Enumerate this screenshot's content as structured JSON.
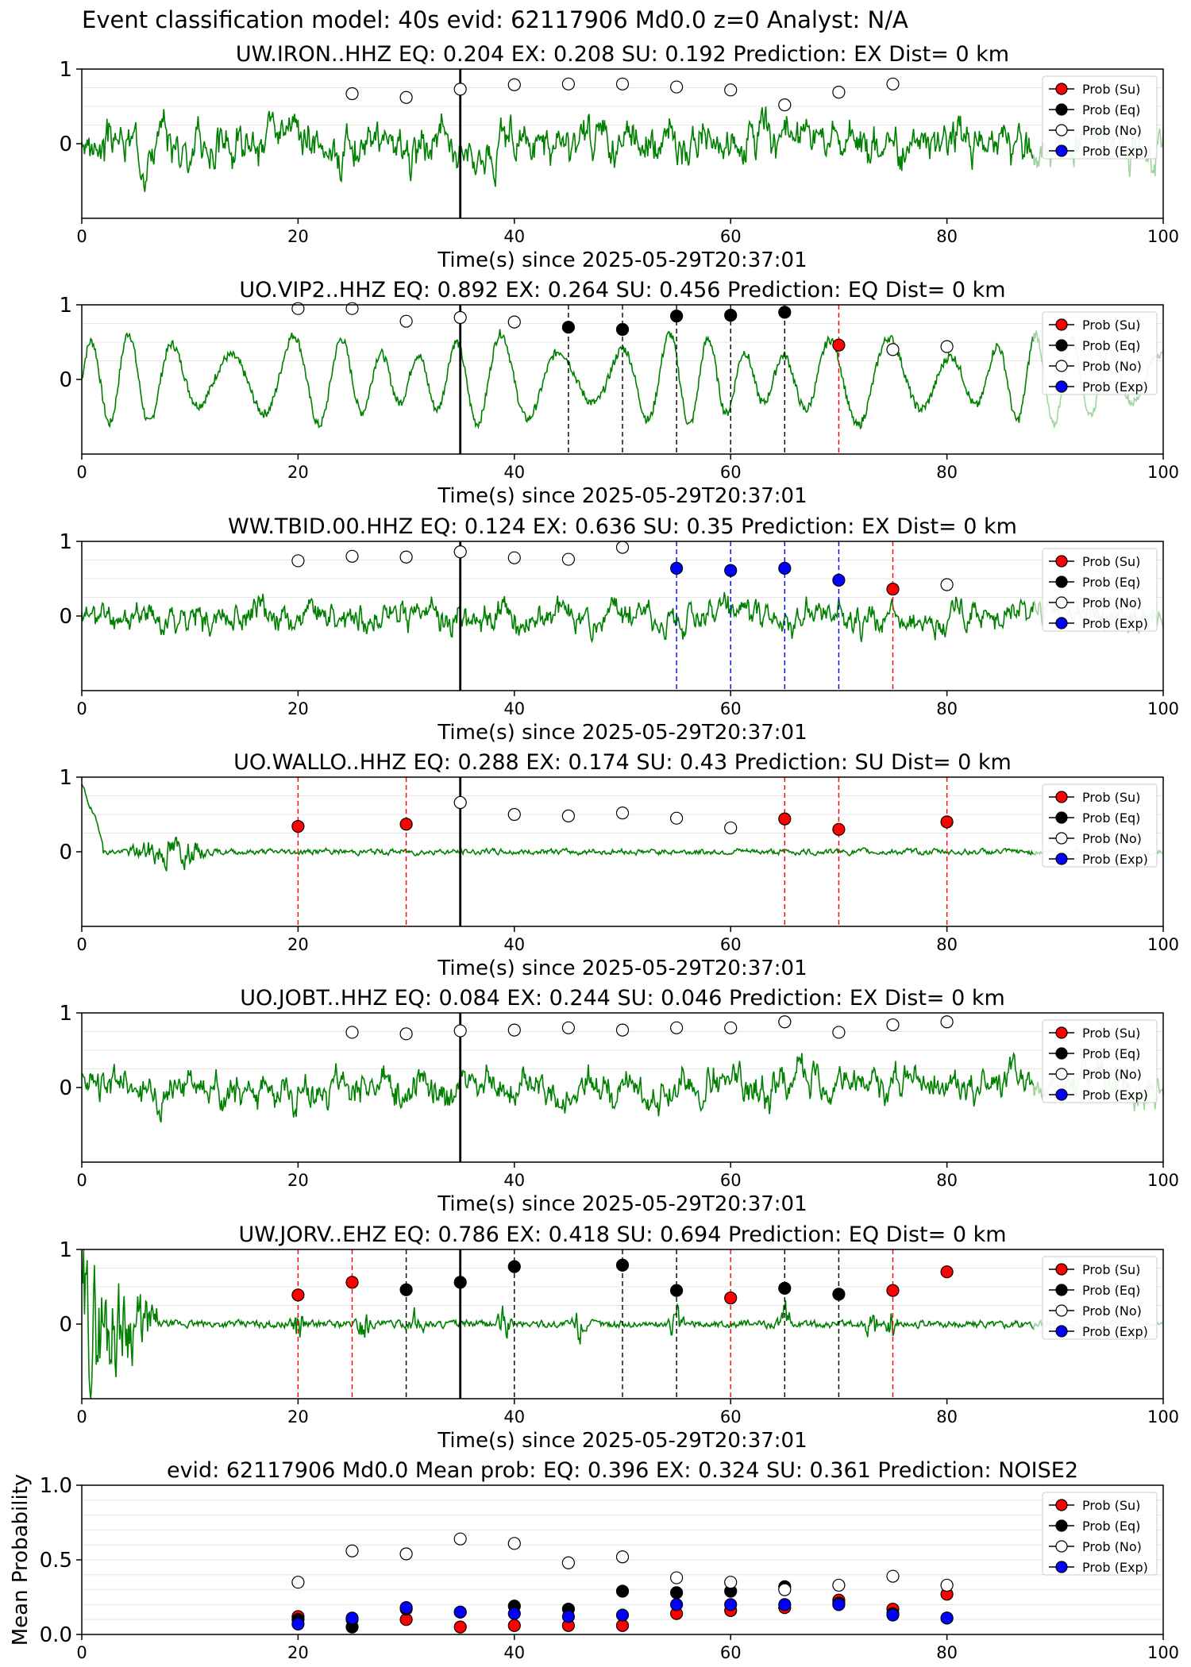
{
  "figure": {
    "suptitle": "Event classification model: 40s evid: 62117906 Md0.0 z=0 Analyst: N/A",
    "legend_labels": [
      "Prob (Su)",
      "Prob (Eq)",
      "Prob (No)",
      "Prob (Exp)"
    ],
    "colors": {
      "su": "#ff0000",
      "eq": "#000000",
      "no": "#ffffff",
      "exp": "#0000ff",
      "waveform": "#008000",
      "waveform_light": "#a3d4a3"
    }
  },
  "chart_data": [
    {
      "type": "line",
      "title": "UW.IRON..HHZ   EQ: 0.204  EX: 0.208  SU: 0.192   Prediction: EX    Dist= 0 km",
      "xlabel": "Time(s) since 2025-05-29T20:37:01",
      "xlim": [
        0,
        100
      ],
      "ylim": [
        -1,
        1
      ],
      "xticks": [
        "0",
        "20",
        "40",
        "60",
        "80",
        "100"
      ],
      "yticks": [
        "1",
        "0"
      ],
      "waveform": {
        "amp": 0.42,
        "char": "noisy",
        "seed": 3
      },
      "origin_time": 35,
      "points": [
        {
          "x": 25,
          "y": 0.67,
          "cls": "no"
        },
        {
          "x": 30,
          "y": 0.62,
          "cls": "no"
        },
        {
          "x": 35,
          "y": 0.73,
          "cls": "no"
        },
        {
          "x": 40,
          "y": 0.79,
          "cls": "no"
        },
        {
          "x": 45,
          "y": 0.8,
          "cls": "no"
        },
        {
          "x": 50,
          "y": 0.8,
          "cls": "no"
        },
        {
          "x": 55,
          "y": 0.76,
          "cls": "no"
        },
        {
          "x": 60,
          "y": 0.72,
          "cls": "no"
        },
        {
          "x": 65,
          "y": 0.52,
          "cls": "no"
        },
        {
          "x": 70,
          "y": 0.69,
          "cls": "no"
        },
        {
          "x": 75,
          "y": 0.8,
          "cls": "no"
        }
      ],
      "picks": []
    },
    {
      "type": "line",
      "title": "UO.VIP2..HHZ   EQ: 0.892  EX: 0.264  SU: 0.456   Prediction: EQ    Dist= 0 km",
      "xlabel": "Time(s) since 2025-05-29T20:37:01",
      "xlim": [
        0,
        100
      ],
      "ylim": [
        -1,
        1
      ],
      "xticks": [
        "0",
        "20",
        "40",
        "60",
        "80",
        "100"
      ],
      "yticks": [
        "1",
        "0"
      ],
      "waveform": {
        "amp": 0.62,
        "char": "wave",
        "seed": 7
      },
      "origin_time": 35,
      "points": [
        {
          "x": 20,
          "y": 0.95,
          "cls": "no"
        },
        {
          "x": 25,
          "y": 0.95,
          "cls": "no"
        },
        {
          "x": 30,
          "y": 0.78,
          "cls": "no"
        },
        {
          "x": 35,
          "y": 0.83,
          "cls": "no"
        },
        {
          "x": 40,
          "y": 0.77,
          "cls": "no"
        },
        {
          "x": 45,
          "y": 0.7,
          "cls": "eq"
        },
        {
          "x": 50,
          "y": 0.67,
          "cls": "eq"
        },
        {
          "x": 55,
          "y": 0.85,
          "cls": "eq"
        },
        {
          "x": 60,
          "y": 0.86,
          "cls": "eq"
        },
        {
          "x": 65,
          "y": 0.9,
          "cls": "eq"
        },
        {
          "x": 70,
          "y": 0.46,
          "cls": "su"
        },
        {
          "x": 75,
          "y": 0.4,
          "cls": "no"
        },
        {
          "x": 80,
          "y": 0.44,
          "cls": "no"
        }
      ],
      "picks": [
        {
          "x": 45,
          "cls": "eq"
        },
        {
          "x": 50,
          "cls": "eq"
        },
        {
          "x": 55,
          "cls": "eq"
        },
        {
          "x": 60,
          "cls": "eq"
        },
        {
          "x": 65,
          "cls": "eq"
        },
        {
          "x": 70,
          "cls": "su"
        }
      ]
    },
    {
      "type": "line",
      "title": "WW.TBID.00.HHZ   EQ: 0.124  EX: 0.636  SU: 0.35   Prediction: EX    Dist= 0 km",
      "xlabel": "Time(s) since 2025-05-29T20:37:01",
      "xlim": [
        0,
        100
      ],
      "ylim": [
        -1,
        1
      ],
      "xticks": [
        "0",
        "20",
        "40",
        "60",
        "80",
        "100"
      ],
      "yticks": [
        "1",
        "0"
      ],
      "waveform": {
        "amp": 0.28,
        "char": "noisy",
        "seed": 11
      },
      "origin_time": 35,
      "points": [
        {
          "x": 20,
          "y": 0.74,
          "cls": "no"
        },
        {
          "x": 25,
          "y": 0.8,
          "cls": "no"
        },
        {
          "x": 30,
          "y": 0.79,
          "cls": "no"
        },
        {
          "x": 35,
          "y": 0.86,
          "cls": "no"
        },
        {
          "x": 40,
          "y": 0.78,
          "cls": "no"
        },
        {
          "x": 45,
          "y": 0.76,
          "cls": "no"
        },
        {
          "x": 50,
          "y": 0.92,
          "cls": "no"
        },
        {
          "x": 55,
          "y": 0.64,
          "cls": "exp"
        },
        {
          "x": 60,
          "y": 0.61,
          "cls": "exp"
        },
        {
          "x": 65,
          "y": 0.64,
          "cls": "exp"
        },
        {
          "x": 70,
          "y": 0.48,
          "cls": "exp"
        },
        {
          "x": 75,
          "y": 0.36,
          "cls": "su"
        },
        {
          "x": 80,
          "y": 0.42,
          "cls": "no"
        }
      ],
      "picks": [
        {
          "x": 55,
          "cls": "exp"
        },
        {
          "x": 60,
          "cls": "exp"
        },
        {
          "x": 65,
          "cls": "exp"
        },
        {
          "x": 70,
          "cls": "exp"
        },
        {
          "x": 75,
          "cls": "su"
        }
      ]
    },
    {
      "type": "line",
      "title": "UO.WALLO..HHZ   EQ: 0.288  EX: 0.174  SU: 0.43   Prediction: SU    Dist= 0 km",
      "xlabel": "Time(s) since 2025-05-29T20:37:01",
      "xlim": [
        0,
        100
      ],
      "ylim": [
        -1,
        1
      ],
      "xticks": [
        "0",
        "20",
        "40",
        "60",
        "80",
        "100"
      ],
      "yticks": [
        "1",
        "0"
      ],
      "waveform": {
        "amp": 0.06,
        "char": "decay",
        "seed": 19
      },
      "origin_time": 35,
      "points": [
        {
          "x": 20,
          "y": 0.34,
          "cls": "su"
        },
        {
          "x": 30,
          "y": 0.37,
          "cls": "su"
        },
        {
          "x": 35,
          "y": 0.66,
          "cls": "no"
        },
        {
          "x": 40,
          "y": 0.5,
          "cls": "no"
        },
        {
          "x": 45,
          "y": 0.48,
          "cls": "no"
        },
        {
          "x": 50,
          "y": 0.52,
          "cls": "no"
        },
        {
          "x": 55,
          "y": 0.45,
          "cls": "no"
        },
        {
          "x": 60,
          "y": 0.32,
          "cls": "no"
        },
        {
          "x": 65,
          "y": 0.44,
          "cls": "su"
        },
        {
          "x": 70,
          "y": 0.3,
          "cls": "su"
        },
        {
          "x": 80,
          "y": 0.4,
          "cls": "su"
        }
      ],
      "picks": [
        {
          "x": 20,
          "cls": "su"
        },
        {
          "x": 30,
          "cls": "su"
        },
        {
          "x": 65,
          "cls": "su"
        },
        {
          "x": 70,
          "cls": "su"
        },
        {
          "x": 80,
          "cls": "su"
        }
      ]
    },
    {
      "type": "line",
      "title": "UO.JOBT..HHZ   EQ: 0.084  EX: 0.244  SU: 0.046   Prediction: EX    Dist= 0 km",
      "xlabel": "Time(s) since 2025-05-29T20:37:01",
      "xlim": [
        0,
        100
      ],
      "ylim": [
        -1,
        1
      ],
      "xticks": [
        "0",
        "20",
        "40",
        "60",
        "80",
        "100"
      ],
      "yticks": [
        "1",
        "0"
      ],
      "waveform": {
        "amp": 0.36,
        "char": "noisy",
        "seed": 23
      },
      "origin_time": 35,
      "points": [
        {
          "x": 25,
          "y": 0.74,
          "cls": "no"
        },
        {
          "x": 30,
          "y": 0.72,
          "cls": "no"
        },
        {
          "x": 35,
          "y": 0.76,
          "cls": "no"
        },
        {
          "x": 40,
          "y": 0.77,
          "cls": "no"
        },
        {
          "x": 45,
          "y": 0.8,
          "cls": "no"
        },
        {
          "x": 50,
          "y": 0.77,
          "cls": "no"
        },
        {
          "x": 55,
          "y": 0.8,
          "cls": "no"
        },
        {
          "x": 60,
          "y": 0.8,
          "cls": "no"
        },
        {
          "x": 65,
          "y": 0.88,
          "cls": "no"
        },
        {
          "x": 70,
          "y": 0.74,
          "cls": "no"
        },
        {
          "x": 75,
          "y": 0.84,
          "cls": "no"
        },
        {
          "x": 80,
          "y": 0.88,
          "cls": "no"
        }
      ],
      "picks": []
    },
    {
      "type": "line",
      "title": "UW.JORV..EHZ   EQ: 0.786  EX: 0.418  SU: 0.694   Prediction: EQ    Dist= 0 km",
      "xlabel": "Time(s) since 2025-05-29T20:37:01",
      "xlim": [
        0,
        100
      ],
      "ylim": [
        -1,
        1
      ],
      "xticks": [
        "0",
        "20",
        "40",
        "60",
        "80",
        "100"
      ],
      "yticks": [
        "1",
        "0"
      ],
      "waveform": {
        "amp": 0.05,
        "char": "burst",
        "seed": 29
      },
      "origin_time": 35,
      "points": [
        {
          "x": 20,
          "y": 0.39,
          "cls": "su"
        },
        {
          "x": 25,
          "y": 0.56,
          "cls": "su"
        },
        {
          "x": 30,
          "y": 0.46,
          "cls": "eq"
        },
        {
          "x": 35,
          "y": 0.56,
          "cls": "eq"
        },
        {
          "x": 40,
          "y": 0.77,
          "cls": "eq"
        },
        {
          "x": 50,
          "y": 0.79,
          "cls": "eq"
        },
        {
          "x": 55,
          "y": 0.45,
          "cls": "eq"
        },
        {
          "x": 60,
          "y": 0.35,
          "cls": "su"
        },
        {
          "x": 65,
          "y": 0.48,
          "cls": "eq"
        },
        {
          "x": 70,
          "y": 0.4,
          "cls": "eq"
        },
        {
          "x": 75,
          "y": 0.45,
          "cls": "su"
        },
        {
          "x": 80,
          "y": 0.7,
          "cls": "su"
        }
      ],
      "picks": [
        {
          "x": 20,
          "cls": "su"
        },
        {
          "x": 25,
          "cls": "su"
        },
        {
          "x": 30,
          "cls": "eq"
        },
        {
          "x": 40,
          "cls": "eq"
        },
        {
          "x": 50,
          "cls": "eq"
        },
        {
          "x": 55,
          "cls": "eq"
        },
        {
          "x": 60,
          "cls": "su"
        },
        {
          "x": 65,
          "cls": "eq"
        },
        {
          "x": 70,
          "cls": "eq"
        },
        {
          "x": 75,
          "cls": "su"
        }
      ]
    },
    {
      "type": "scatter",
      "title": "evid: 62117906  Md0.0   Mean prob:   EQ: 0.396  EX: 0.324  SU: 0.361   Prediction: NOISE2",
      "ylabel": "Mean Probability",
      "xlim": [
        0,
        100
      ],
      "ylim": [
        0,
        1
      ],
      "xticks": [
        "0",
        "20",
        "40",
        "60",
        "80",
        "100"
      ],
      "yticks": [
        "1.0",
        "0.5",
        "0.0"
      ],
      "series": [
        {
          "name": "Prob (Su)",
          "cls": "su",
          "x": [
            20,
            25,
            30,
            35,
            40,
            45,
            50,
            55,
            60,
            65,
            70,
            75,
            80
          ],
          "y": [
            0.12,
            0.1,
            0.1,
            0.05,
            0.06,
            0.06,
            0.06,
            0.14,
            0.16,
            0.18,
            0.23,
            0.17,
            0.27
          ]
        },
        {
          "name": "Prob (Eq)",
          "cls": "eq",
          "x": [
            20,
            25,
            30,
            35,
            40,
            45,
            50,
            55,
            60,
            65,
            70,
            75,
            80
          ],
          "y": [
            0.1,
            0.05,
            0.17,
            0.15,
            0.19,
            0.17,
            0.29,
            0.28,
            0.29,
            0.32,
            0.21,
            0.14,
            0.11
          ]
        },
        {
          "name": "Prob (No)",
          "cls": "no",
          "x": [
            20,
            25,
            30,
            35,
            40,
            45,
            50,
            55,
            60,
            65,
            70,
            75,
            80
          ],
          "y": [
            0.35,
            0.56,
            0.54,
            0.64,
            0.61,
            0.48,
            0.52,
            0.38,
            0.35,
            0.3,
            0.33,
            0.39,
            0.33
          ]
        },
        {
          "name": "Prob (Exp)",
          "cls": "exp",
          "x": [
            20,
            25,
            30,
            35,
            40,
            45,
            50,
            55,
            60,
            65,
            70,
            75,
            80
          ],
          "y": [
            0.07,
            0.11,
            0.18,
            0.15,
            0.14,
            0.12,
            0.13,
            0.2,
            0.2,
            0.2,
            0.2,
            0.13,
            0.11
          ]
        }
      ]
    }
  ]
}
